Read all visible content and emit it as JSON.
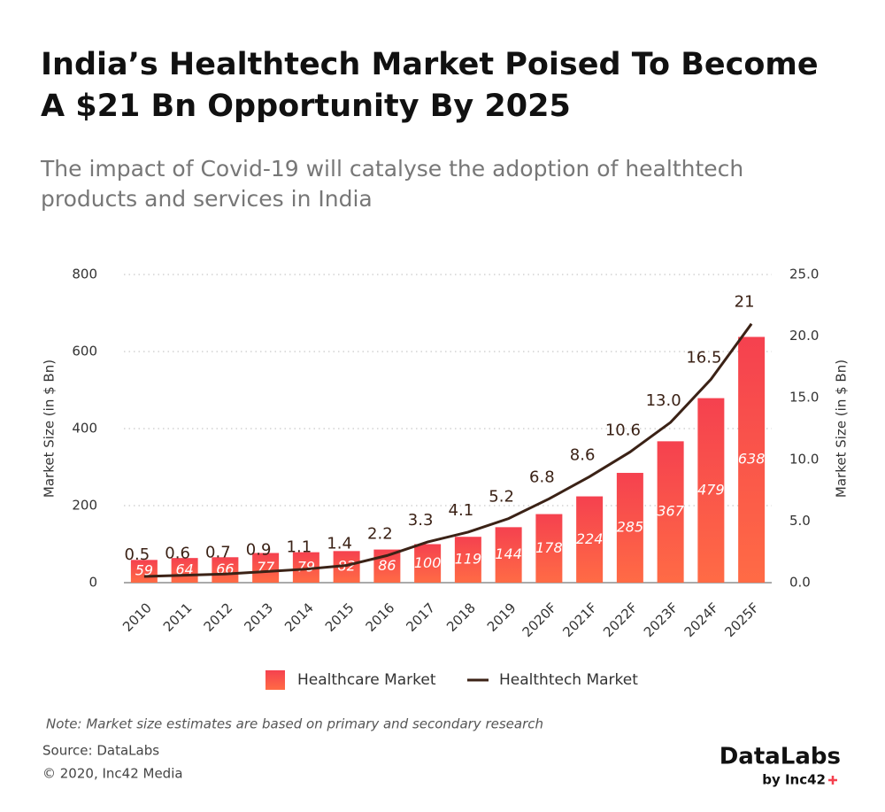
{
  "chart_data": {
    "type": "combo",
    "title": [
      "India’s Healthtech Market  Poised To Become",
      "A $21 Bn Opportunity By 2025"
    ],
    "subtitle": [
      "The impact of Covid-19 will catalyse the adoption of healthtech",
      "products and services in India"
    ],
    "y_label": "Market Size (in $ Bn)",
    "y2_label": "Market Size (in $ Bn)",
    "categories": [
      "2010",
      "2011",
      "2012",
      "2013",
      "2014",
      "2015",
      "2016",
      "2017",
      "2018",
      "2019",
      "2020F",
      "2021F",
      "2022F",
      "2023F",
      "2024F",
      "2025F"
    ],
    "series": [
      {
        "name": "Healthcare Market",
        "type": "bar",
        "color": "#f5414f",
        "values": [
          59,
          64,
          66,
          77,
          79,
          82,
          86,
          100,
          119,
          144,
          178,
          224,
          285,
          367,
          479,
          638
        ]
      },
      {
        "name": "Healthtech Market",
        "type": "line",
        "axis": "y2",
        "color": "#3b2216",
        "values": [
          0.5,
          0.6,
          0.7,
          0.9,
          1.1,
          1.4,
          2.2,
          3.3,
          4.1,
          5.2,
          6.8,
          8.6,
          10.6,
          13.0,
          16.5,
          21
        ],
        "value_labels": [
          "0.5",
          "0.6",
          "0.7",
          "0.9",
          "1.1",
          "1.4",
          "2.2",
          "3.3",
          "4.1",
          "5.2",
          "6.8",
          "8.6",
          "10.6",
          "13.0",
          "16.5",
          "21"
        ]
      }
    ],
    "ylim": [
      0,
      800
    ],
    "yticks": [
      0,
      200,
      400,
      600,
      800
    ],
    "y2lim": [
      0,
      25
    ],
    "y2ticks": [
      {
        "value": 0,
        "label": "0.0"
      },
      {
        "value": 5,
        "label": "5.0"
      },
      {
        "value": 10,
        "label": "10.0"
      },
      {
        "value": 15,
        "label": "15.0"
      },
      {
        "value": 20,
        "label": "20.0"
      },
      {
        "value": 25,
        "label": "25.0"
      }
    ],
    "grid": true,
    "legend": "bottom"
  },
  "footer": {
    "note": "Note: Market size estimates are based on primary and secondary research",
    "source": "Source: DataLabs",
    "copyright": "© 2020, Inc42 Media"
  },
  "logo": {
    "name": "DataLabs",
    "byline": "by Inc42"
  }
}
